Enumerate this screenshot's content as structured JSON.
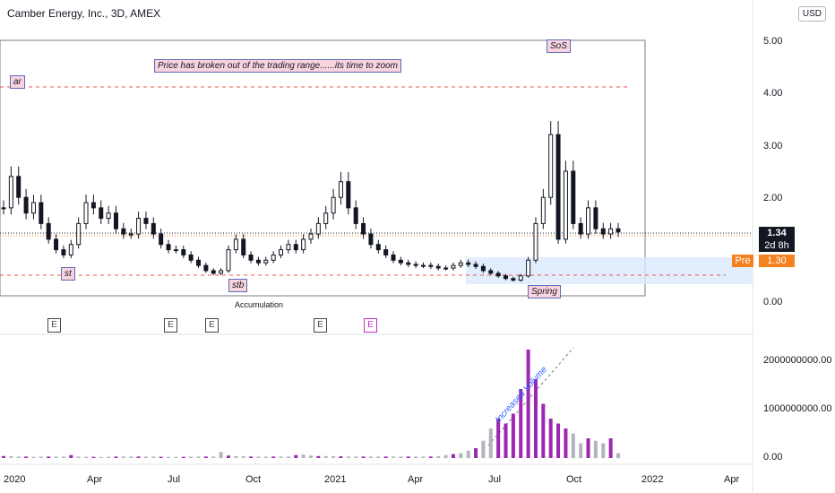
{
  "header": {
    "title": "Camber Energy, Inc., 3D, AMEX",
    "currency": "USD"
  },
  "price_axis": {
    "ticks": [
      "5.00",
      "4.00",
      "3.00",
      "2.00",
      "0.00"
    ],
    "last_price": "1.34",
    "countdown": "2d 8h",
    "pre_label": "Pre",
    "pre_price": "1.30"
  },
  "volume_axis": {
    "ticks": [
      "2000000000.00",
      "1000000000.00",
      "0.00"
    ]
  },
  "time_axis": {
    "ticks": [
      "2020",
      "Apr",
      "Jul",
      "Oct",
      "2021",
      "Apr",
      "Jul",
      "Oct",
      "2022",
      "Apr"
    ]
  },
  "annotations": {
    "ar": "ar",
    "st": "st",
    "stb": "stb",
    "sos": "SoS",
    "spring": "Spring",
    "main": "Price has broken out of the trading range......its time to zoom",
    "accumulation": "Accumulation",
    "volume_note": "Increased Volume"
  },
  "events": [
    "E",
    "E",
    "E",
    "E",
    "E"
  ],
  "colors": {
    "up": "#131722",
    "down": "#131722",
    "up_fill": "#ffffff",
    "down_fill": "#131722",
    "level_line": "#ef5350",
    "volume_gray": "#b2b5be",
    "volume_purple": "#9c27b0",
    "spring_zone": "#dbeafe",
    "current_line": "#131722"
  },
  "chart_data": {
    "type": "candlestick",
    "y_range": [
      0,
      5
    ],
    "series": [
      {
        "name": "price",
        "values": [
          1.8,
          2.4,
          2.0,
          1.7,
          1.9,
          1.5,
          1.2,
          1.0,
          0.9,
          1.1,
          1.5,
          1.9,
          1.8,
          1.6,
          1.7,
          1.4,
          1.3,
          1.3,
          1.6,
          1.5,
          1.3,
          1.1,
          1.0,
          1.0,
          0.9,
          0.8,
          0.7,
          0.6,
          0.55,
          0.6,
          1.0,
          1.2,
          0.9,
          0.8,
          0.75,
          0.8,
          0.9,
          1.0,
          1.1,
          1.0,
          1.2,
          1.3,
          1.5,
          1.7,
          2.0,
          2.3,
          1.8,
          1.5,
          1.3,
          1.1,
          1.0,
          0.9,
          0.8,
          0.75,
          0.72,
          0.7,
          0.7,
          0.68,
          0.65,
          0.65,
          0.7,
          0.75,
          0.72,
          0.68,
          0.6,
          0.55,
          0.5,
          0.45,
          0.42,
          0.5,
          0.8,
          1.5,
          2.0,
          3.2,
          1.2,
          2.5,
          1.5,
          1.3,
          1.8,
          1.4,
          1.3,
          1.4,
          1.34
        ]
      }
    ],
    "volume": [
      40,
      35,
      30,
      30,
      25,
      28,
      30,
      30,
      30,
      60,
      30,
      25,
      25,
      20,
      25,
      30,
      30,
      30,
      30,
      30,
      30,
      25,
      25,
      25,
      25,
      30,
      30,
      30,
      30,
      120,
      50,
      40,
      35,
      30,
      30,
      30,
      30,
      30,
      30,
      60,
      70,
      50,
      40,
      40,
      40,
      35,
      30,
      30,
      30,
      30,
      30,
      30,
      30,
      30,
      30,
      30,
      30,
      30,
      40,
      60,
      80,
      100,
      150,
      200,
      350,
      600,
      800,
      700,
      900,
      1400,
      2200,
      1600,
      1100,
      800,
      700,
      600,
      500,
      300,
      400,
      350,
      300,
      400,
      100
    ]
  }
}
